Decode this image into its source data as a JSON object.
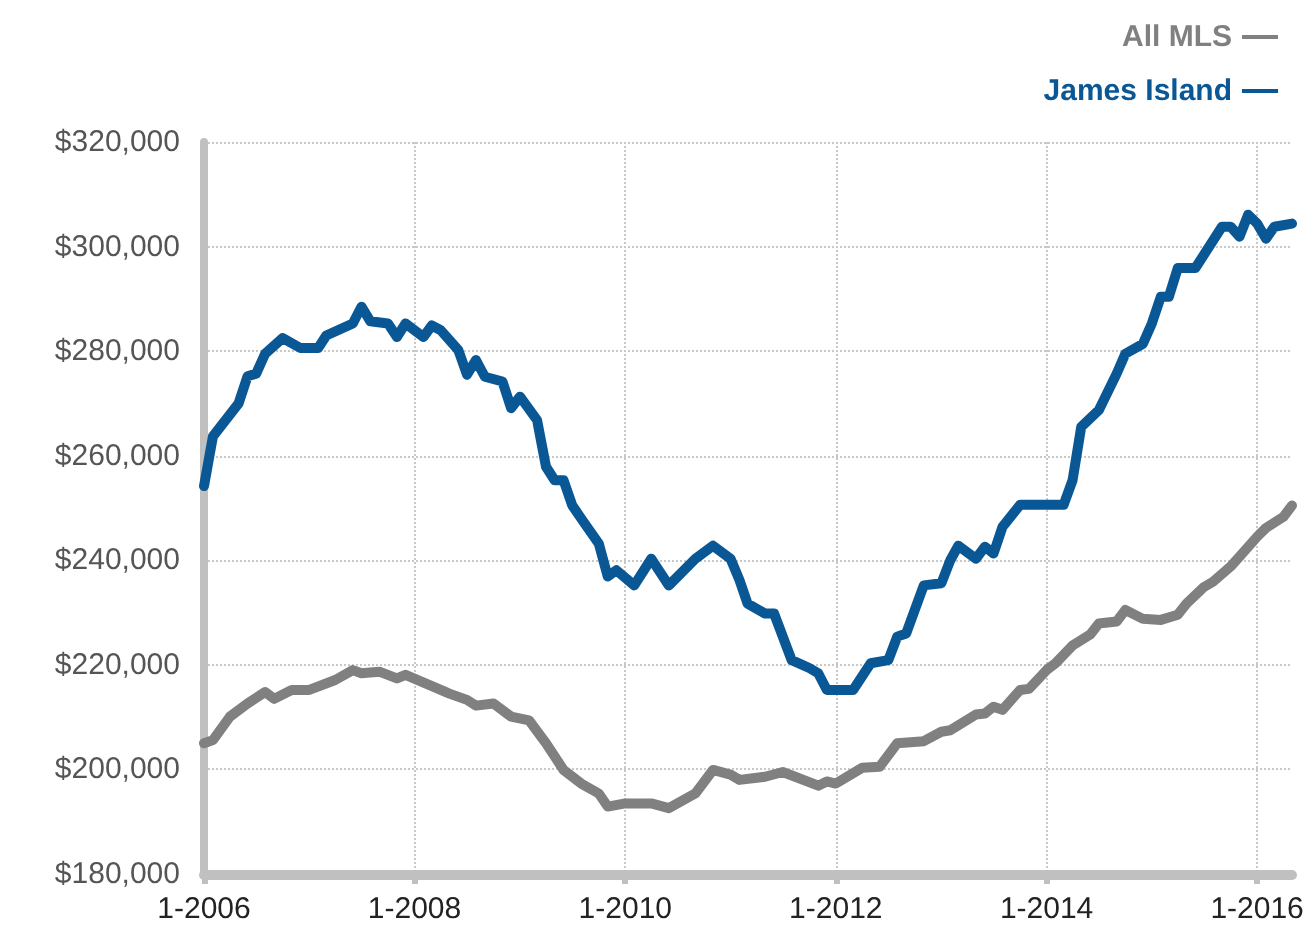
{
  "chart_data": {
    "type": "line",
    "legend": "top right",
    "grid": true,
    "marker": "none",
    "line_style": "solid",
    "xlim": [
      "2006-01",
      "2016-05"
    ],
    "ylim": [
      180000,
      320000
    ],
    "xticks": [
      {
        "value": "2006-01",
        "label": "1-2006"
      },
      {
        "value": "2008-01",
        "label": "1-2008"
      },
      {
        "value": "2010-01",
        "label": "1-2010"
      },
      {
        "value": "2012-01",
        "label": "1-2012"
      },
      {
        "value": "2014-01",
        "label": "1-2014"
      },
      {
        "value": "2016-01",
        "label": "1-2016"
      }
    ],
    "yticks": [
      {
        "value": 180000,
        "label": "$180,000"
      },
      {
        "value": 200000,
        "label": "$200,000"
      },
      {
        "value": 220000,
        "label": "$220,000"
      },
      {
        "value": 240000,
        "label": "$240,000"
      },
      {
        "value": 260000,
        "label": "$260,000"
      },
      {
        "value": 280000,
        "label": "$280,000"
      },
      {
        "value": 300000,
        "label": "$300,000"
      },
      {
        "value": 320000,
        "label": "$320,000"
      }
    ],
    "series": [
      {
        "name": "All MLS",
        "color": "#808080",
        "x": [
          "2006-01",
          "2006-02",
          "2006-04",
          "2006-06",
          "2006-08",
          "2006-09",
          "2006-11",
          "2007-01",
          "2007-04",
          "2007-06",
          "2007-07",
          "2007-09",
          "2007-11",
          "2007-12",
          "2008-04",
          "2008-05",
          "2008-07",
          "2008-08",
          "2008-10",
          "2008-12",
          "2009-02",
          "2009-04",
          "2009-06",
          "2009-08",
          "2009-10",
          "2009-11",
          "2010-01",
          "2010-04",
          "2010-06",
          "2010-09",
          "2010-11",
          "2011-01",
          "2011-02",
          "2011-05",
          "2011-07",
          "2011-11",
          "2011-12",
          "2012-01",
          "2012-04",
          "2012-06",
          "2012-08",
          "2012-11",
          "2013-01",
          "2013-02",
          "2013-05",
          "2013-06",
          "2013-07",
          "2013-08",
          "2013-10",
          "2013-11",
          "2014-01",
          "2014-02",
          "2014-04",
          "2014-06",
          "2014-07",
          "2014-09",
          "2014-10",
          "2014-12",
          "2015-02",
          "2015-04",
          "2015-05",
          "2015-07",
          "2015-08",
          "2015-10",
          "2015-11",
          "2016-01",
          "2016-02",
          "2016-04",
          "2016-05"
        ],
        "values": [
          205000,
          205600,
          210100,
          212600,
          214800,
          213500,
          215200,
          215200,
          217100,
          219000,
          218400,
          218700,
          217400,
          218100,
          215200,
          214500,
          213300,
          212200,
          212600,
          210100,
          209400,
          205000,
          199900,
          197300,
          195400,
          192900,
          193500,
          193500,
          192600,
          195400,
          199900,
          199000,
          198000,
          198600,
          199500,
          196900,
          197700,
          197300,
          200300,
          200500,
          205000,
          205400,
          207200,
          207500,
          210500,
          210700,
          212000,
          211400,
          215200,
          215400,
          219000,
          220300,
          223700,
          225800,
          227900,
          228300,
          230500,
          228800,
          228600,
          229600,
          231700,
          234900,
          235900,
          238800,
          240700,
          244500,
          246200,
          248300,
          250500
        ]
      },
      {
        "name": "James Island",
        "color": "#0a5796",
        "x": [
          "2006-01",
          "2006-02",
          "2006-05",
          "2006-06",
          "2006-07",
          "2006-08",
          "2006-10",
          "2006-12",
          "2007-02",
          "2007-03",
          "2007-06",
          "2007-07",
          "2007-08",
          "2007-10",
          "2007-11",
          "2007-12",
          "2008-02",
          "2008-03",
          "2008-04",
          "2008-06",
          "2008-07",
          "2008-08",
          "2008-09",
          "2008-11",
          "2008-12",
          "2009-01",
          "2009-03",
          "2009-04",
          "2009-05",
          "2009-06",
          "2009-07",
          "2009-08",
          "2009-10",
          "2009-11",
          "2009-12",
          "2010-02",
          "2010-04",
          "2010-06",
          "2010-09",
          "2010-11",
          "2011-01",
          "2011-02",
          "2011-03",
          "2011-05",
          "2011-06",
          "2011-08",
          "2011-10",
          "2011-11",
          "2011-12",
          "2012-03",
          "2012-05",
          "2012-07",
          "2012-08",
          "2012-09",
          "2012-11",
          "2013-01",
          "2013-02",
          "2013-03",
          "2013-05",
          "2013-06",
          "2013-07",
          "2013-08",
          "2013-10",
          "2014-03",
          "2014-04",
          "2014-05",
          "2014-07",
          "2014-09",
          "2014-10",
          "2014-12",
          "2015-01",
          "2015-02",
          "2015-03",
          "2015-04",
          "2015-06",
          "2015-09",
          "2015-10",
          "2015-11",
          "2015-12",
          "2016-01",
          "2016-02",
          "2016-03",
          "2016-05"
        ],
        "values": [
          254200,
          263700,
          270000,
          275200,
          275700,
          279500,
          282500,
          280600,
          280600,
          283000,
          285300,
          288500,
          285700,
          285300,
          282700,
          285300,
          282700,
          284900,
          284000,
          280200,
          275500,
          278300,
          275100,
          274200,
          269100,
          271300,
          266800,
          257900,
          255300,
          255300,
          250500,
          248000,
          243200,
          236900,
          238100,
          235200,
          240300,
          235200,
          240300,
          242800,
          240300,
          236200,
          231700,
          229800,
          229800,
          220900,
          219400,
          218400,
          215200,
          215200,
          220300,
          220900,
          225400,
          226000,
          235200,
          235600,
          240000,
          242800,
          240300,
          242600,
          241300,
          246400,
          250600,
          250600,
          255300,
          265500,
          268700,
          275700,
          279500,
          281400,
          285300,
          290400,
          290400,
          295900,
          295900,
          303800,
          303800,
          301900,
          306100,
          304400,
          301500,
          303800,
          304400
        ]
      }
    ]
  }
}
